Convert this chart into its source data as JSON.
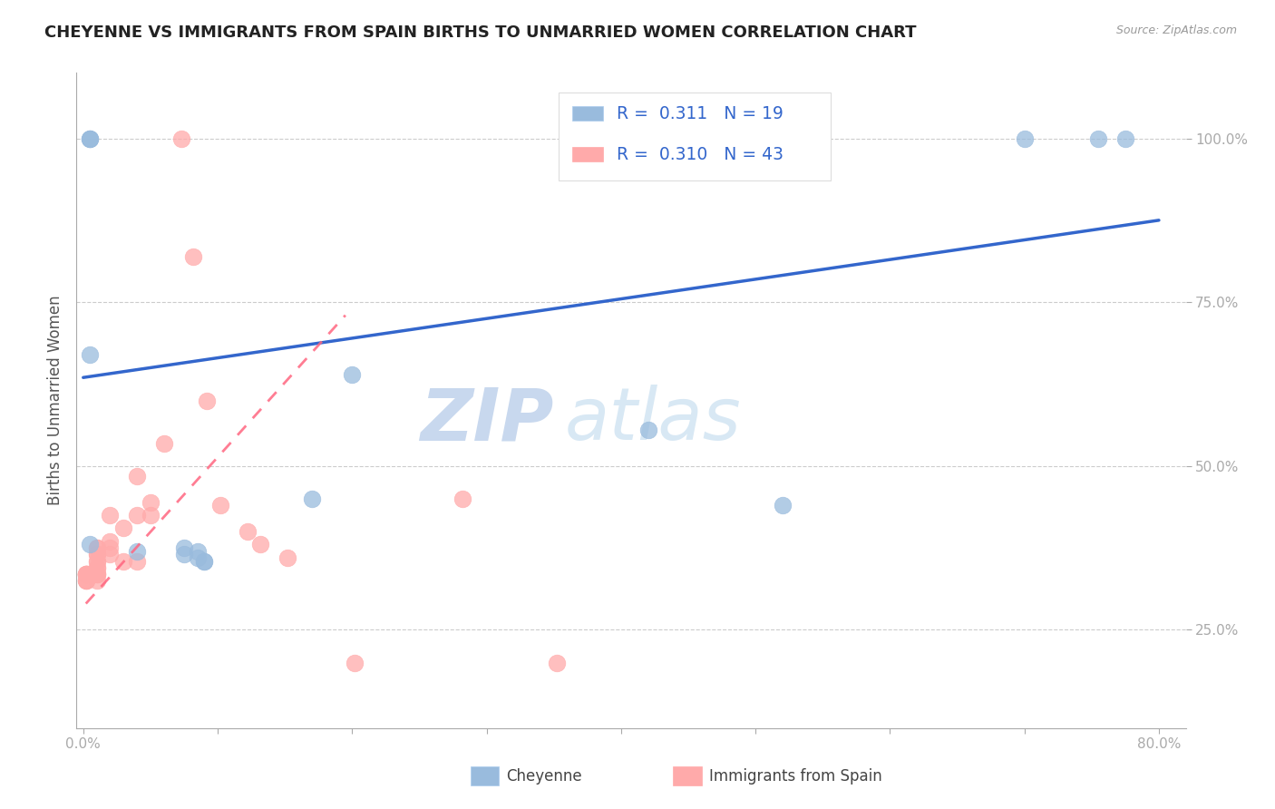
{
  "title": "CHEYENNE VS IMMIGRANTS FROM SPAIN BIRTHS TO UNMARRIED WOMEN CORRELATION CHART",
  "source": "Source: ZipAtlas.com",
  "ylabel": "Births to Unmarried Women",
  "legend_label1": "Cheyenne",
  "legend_label2": "Immigrants from Spain",
  "R1": "0.311",
  "N1": "19",
  "R2": "0.310",
  "N2": "43",
  "xlim": [
    -0.005,
    0.82
  ],
  "ylim": [
    0.1,
    1.1
  ],
  "yticks": [
    0.25,
    0.5,
    0.75,
    1.0
  ],
  "ytick_labels": [
    "25.0%",
    "50.0%",
    "75.0%",
    "100.0%"
  ],
  "xticks": [
    0.0,
    0.1,
    0.2,
    0.3,
    0.4,
    0.5,
    0.6,
    0.7,
    0.8
  ],
  "xtick_labels": [
    "0.0%",
    "",
    "",
    "",
    "",
    "",
    "",
    "",
    "80.0%"
  ],
  "color_blue": "#99BBDD",
  "color_pink": "#FFAAAA",
  "color_blue_line": "#3366CC",
  "color_pink_line": "#FF6680",
  "watermark_zip": "ZIP",
  "watermark_atlas": "atlas",
  "blue_points_x": [
    0.005,
    0.005,
    0.005,
    0.005,
    0.005,
    0.04,
    0.075,
    0.075,
    0.085,
    0.085,
    0.09,
    0.09,
    0.17,
    0.2,
    0.42,
    0.52,
    0.7,
    0.755,
    0.775
  ],
  "blue_points_y": [
    1.0,
    1.0,
    1.0,
    0.67,
    0.38,
    0.37,
    0.375,
    0.365,
    0.37,
    0.36,
    0.355,
    0.355,
    0.45,
    0.64,
    0.555,
    0.44,
    1.0,
    1.0,
    1.0
  ],
  "pink_points_x": [
    0.002,
    0.002,
    0.002,
    0.002,
    0.002,
    0.002,
    0.002,
    0.002,
    0.002,
    0.01,
    0.01,
    0.01,
    0.01,
    0.01,
    0.01,
    0.01,
    0.01,
    0.01,
    0.01,
    0.01,
    0.01,
    0.02,
    0.02,
    0.02,
    0.02,
    0.03,
    0.03,
    0.04,
    0.04,
    0.04,
    0.05,
    0.05,
    0.06,
    0.073,
    0.082,
    0.092,
    0.102,
    0.122,
    0.132,
    0.152,
    0.202,
    0.282,
    0.352
  ],
  "pink_points_y": [
    0.335,
    0.335,
    0.335,
    0.335,
    0.335,
    0.335,
    0.325,
    0.325,
    0.325,
    0.375,
    0.375,
    0.365,
    0.365,
    0.355,
    0.355,
    0.345,
    0.345,
    0.335,
    0.335,
    0.335,
    0.325,
    0.425,
    0.385,
    0.375,
    0.365,
    0.405,
    0.355,
    0.485,
    0.425,
    0.355,
    0.445,
    0.425,
    0.535,
    1.0,
    0.82,
    0.6,
    0.44,
    0.4,
    0.38,
    0.36,
    0.2,
    0.45,
    0.2
  ],
  "blue_line_x": [
    0.0,
    0.8
  ],
  "blue_line_y": [
    0.635,
    0.875
  ],
  "pink_line_x": [
    0.002,
    0.195
  ],
  "pink_line_y": [
    0.29,
    0.73
  ]
}
